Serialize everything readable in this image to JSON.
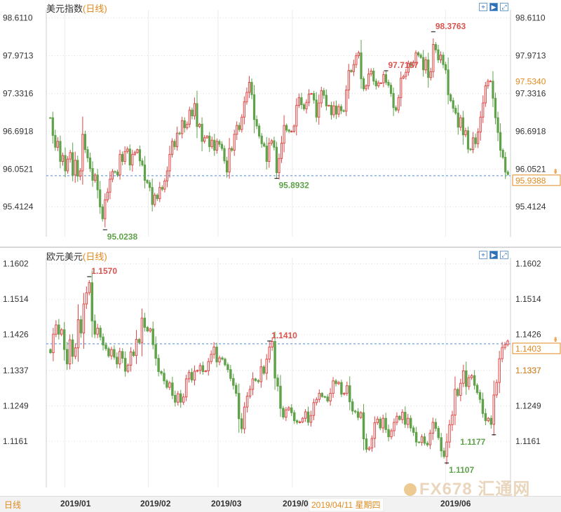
{
  "colors": {
    "up": "#e04646",
    "down": "#5fa24a",
    "grid": "#dcdcdc",
    "ref": "#4a8ad8",
    "accent": "#e08a1e"
  },
  "toolbar": {
    "icons": [
      "crosshair-icon",
      "play-icon",
      "zoom-icon"
    ]
  },
  "top": {
    "title": "美元指数",
    "period": "(日线)",
    "current_value": "97.5340",
    "ref_price": "95.9388",
    "annotations": {
      "high1": "97.7157",
      "high2": "98.3763",
      "low1": "95.0238",
      "low2": "95.8932"
    }
  },
  "bottom": {
    "title": "欧元美元",
    "period": "(日线)",
    "current_value": "1.1337",
    "ref_price": "1.1403",
    "annotations": {
      "high1": "1.1570",
      "high2": "1.1410",
      "low1": "1.1177",
      "low2": "1.1107"
    }
  },
  "xaxis": {
    "months": [
      "2019/01",
      "2019/02",
      "2019/03",
      "2019/0",
      "2019/06"
    ],
    "hover_date": "2019/04/11 星期四",
    "period_label": "日线"
  },
  "watermark": "FX678 汇通网",
  "chart_data": [
    {
      "type": "candlestick",
      "title": "美元指数",
      "series_name": "美元指数",
      "period": "日线",
      "ylim": [
        95.0,
        98.7
      ],
      "y_ticks": [
        98.611,
        97.9713,
        97.3316,
        96.6918,
        96.0521,
        95.4124
      ],
      "y_tick_labels": [
        "98.6110",
        "97.9713",
        "97.3316",
        "96.6918",
        "96.0521",
        "95.4124"
      ],
      "x_ticks": [
        "2019/01",
        "2019/02",
        "2019/03",
        "2019/0",
        "2019/06"
      ],
      "reference_line": 95.9388,
      "current_value": 97.534,
      "annotations": [
        {
          "label": "97.7157",
          "value": 97.7157,
          "kind": "high"
        },
        {
          "label": "98.3763",
          "value": 98.3763,
          "kind": "high"
        },
        {
          "label": "95.0238",
          "value": 95.0238,
          "kind": "low"
        },
        {
          "label": "95.8932",
          "value": 95.8932,
          "kind": "low"
        }
      ],
      "close": [
        96.92,
        96.62,
        96.42,
        96.52,
        96.18,
        96.28,
        96.02,
        96.22,
        96.33,
        95.95,
        96.2,
        95.93,
        96.02,
        96.64,
        96.38,
        96.24,
        96.06,
        95.86,
        95.95,
        95.7,
        95.41,
        95.21,
        95.53,
        95.66,
        95.88,
        96.01,
        96.0,
        95.95,
        96.3,
        96.18,
        96.35,
        96.39,
        96.12,
        96.3,
        96.33,
        96.38,
        96.19,
        96.12,
        95.86,
        95.82,
        95.74,
        95.45,
        95.61,
        95.55,
        95.74,
        95.71,
        95.85,
        96.02,
        96.3,
        96.52,
        96.43,
        96.66,
        96.65,
        96.87,
        96.75,
        96.81,
        97.05,
        96.95,
        97.16,
        96.77,
        96.81,
        96.52,
        96.58,
        96.61,
        96.43,
        96.54,
        96.37,
        96.52,
        96.47,
        96.4,
        96.19,
        96.0,
        96.4,
        96.37,
        96.64,
        96.79,
        96.72,
        96.93,
        97.19,
        97.35,
        97.52,
        97.31,
        96.89,
        96.78,
        96.61,
        96.48,
        96.44,
        96.18,
        96.49,
        96.53,
        96.42,
        95.99,
        96.23,
        96.49,
        96.79,
        96.71,
        96.69,
        96.69,
        96.78,
        97.13,
        97.26,
        97.14,
        97.07,
        97.18,
        97.32,
        97.33,
        97.22,
        96.93,
        97.17,
        97.38,
        97.3,
        97.12,
        97.13,
        96.97,
        97.12,
        96.98,
        97.11,
        97.04,
        97.03,
        97.39,
        97.72,
        97.7,
        97.82,
        97.97,
        98.02,
        97.58,
        97.41,
        97.46,
        97.66,
        97.71,
        97.54,
        97.46,
        97.51,
        97.51,
        97.65,
        97.52,
        97.47,
        97.33,
        97.09,
        97.05,
        97.26,
        97.59,
        97.62,
        97.69,
        97.84,
        97.8,
        97.85,
        98.02,
        97.98,
        97.94,
        97.73,
        97.9,
        97.6,
        97.7,
        98.16,
        98.07,
        97.9,
        97.98,
        97.82,
        97.73,
        97.31,
        97.21,
        97.08,
        97.0,
        96.76,
        96.92,
        96.63,
        96.7,
        96.39,
        96.38,
        96.58,
        96.48,
        96.68,
        96.93,
        97.17,
        97.46,
        97.54,
        97.54,
        97.25,
        96.92,
        96.67,
        96.37,
        96.25,
        96.0,
        95.96
      ],
      "ohlc_note": "open of each candle = previous close"
    },
    {
      "type": "candlestick",
      "title": "欧元美元",
      "series_name": "欧元美元",
      "period": "日线",
      "ylim": [
        1.106,
        1.161
      ],
      "y_ticks": [
        1.1602,
        1.1514,
        1.1426,
        1.1337,
        1.1249,
        1.1161
      ],
      "y_tick_labels": [
        "1.1602",
        "1.1514",
        "1.1426",
        "1.1337",
        "1.1249",
        "1.1161"
      ],
      "x_ticks": [
        "2019/01",
        "2019/02",
        "2019/03",
        "2019/0",
        "2019/06"
      ],
      "reference_line": 1.1403,
      "current_value": 1.1337,
      "annotations": [
        {
          "label": "1.1570",
          "value": 1.157,
          "kind": "high"
        },
        {
          "label": "1.1410",
          "value": 1.141,
          "kind": "high"
        },
        {
          "label": "1.1177",
          "value": 1.1177,
          "kind": "low"
        },
        {
          "label": "1.1107",
          "value": 1.1107,
          "kind": "low"
        }
      ],
      "close": [
        1.1381,
        1.1427,
        1.145,
        1.1427,
        1.1438,
        1.1389,
        1.1353,
        1.1413,
        1.1372,
        1.1393,
        1.1463,
        1.143,
        1.1502,
        1.153,
        1.1555,
        1.146,
        1.1427,
        1.1442,
        1.142,
        1.14,
        1.1391,
        1.1373,
        1.1389,
        1.137,
        1.1353,
        1.1384,
        1.1367,
        1.1335,
        1.135,
        1.1383,
        1.1374,
        1.1414,
        1.1406,
        1.1467,
        1.1444,
        1.1435,
        1.144,
        1.1401,
        1.1367,
        1.1334,
        1.133,
        1.1311,
        1.1295,
        1.1306,
        1.1275,
        1.1258,
        1.1279,
        1.1258,
        1.1271,
        1.1316,
        1.1332,
        1.1313,
        1.1335,
        1.1337,
        1.1349,
        1.1334,
        1.1336,
        1.1359,
        1.1377,
        1.1395,
        1.1358,
        1.1368,
        1.1365,
        1.1351,
        1.1339,
        1.1317,
        1.13,
        1.128,
        1.1217,
        1.1192,
        1.1246,
        1.1273,
        1.129,
        1.1316,
        1.1312,
        1.1309,
        1.1346,
        1.133,
        1.1365,
        1.1395,
        1.1409,
        1.1318,
        1.1298,
        1.1243,
        1.1221,
        1.1239,
        1.1244,
        1.1232,
        1.1212,
        1.1208,
        1.1209,
        1.1218,
        1.1234,
        1.1208,
        1.1225,
        1.1257,
        1.1265,
        1.128,
        1.1272,
        1.1271,
        1.1261,
        1.128,
        1.1311,
        1.1304,
        1.1307,
        1.1278,
        1.128,
        1.1299,
        1.1259,
        1.1236,
        1.1234,
        1.122,
        1.1232,
        1.1167,
        1.1141,
        1.1144,
        1.1168,
        1.1207,
        1.1216,
        1.1194,
        1.1218,
        1.119,
        1.1172,
        1.1187,
        1.1208,
        1.1223,
        1.1215,
        1.1233,
        1.1203,
        1.1218,
        1.1194,
        1.1183,
        1.1159,
        1.1158,
        1.1172,
        1.1156,
        1.1152,
        1.1181,
        1.1208,
        1.1193,
        1.117,
        1.1137,
        1.1123,
        1.1159,
        1.1202,
        1.1226,
        1.129,
        1.1275,
        1.1305,
        1.1336,
        1.1297,
        1.1319,
        1.1324,
        1.13,
        1.1282,
        1.1265,
        1.123,
        1.1212,
        1.1218,
        1.1203,
        1.1276,
        1.1307,
        1.1366,
        1.1394,
        1.1401,
        1.141
      ],
      "ohlc_note": "open of each candle = previous close"
    }
  ]
}
